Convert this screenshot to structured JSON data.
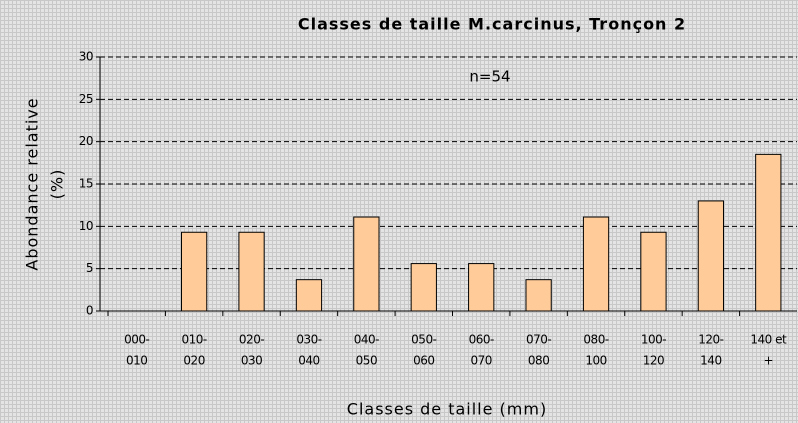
{
  "chart_data": {
    "type": "bar",
    "title": "Classes de taille M.carcinus, Tronçon 2",
    "x_label": "Classes de taille (mm)",
    "y_label": [
      "Abondance relative",
      "(%)"
    ],
    "annotation": "n=54",
    "categories": [
      [
        "000-",
        "010"
      ],
      [
        "010-",
        "020"
      ],
      [
        "020-",
        "030"
      ],
      [
        "030-",
        "040"
      ],
      [
        "040-",
        "050"
      ],
      [
        "050-",
        "060"
      ],
      [
        "060-",
        "070"
      ],
      [
        "070-",
        "080"
      ],
      [
        "080-",
        "100"
      ],
      [
        "100-",
        "120"
      ],
      [
        "120-",
        "140"
      ],
      [
        "140 et",
        "+"
      ]
    ],
    "values": [
      0,
      9.3,
      9.3,
      3.7,
      11.1,
      5.6,
      5.6,
      3.7,
      11.1,
      9.3,
      13,
      18.5
    ],
    "color": "#ffcc99",
    "ylim": [
      0,
      30
    ],
    "yticks": [
      0,
      5,
      10,
      15,
      20,
      25,
      30
    ],
    "grid": true
  }
}
